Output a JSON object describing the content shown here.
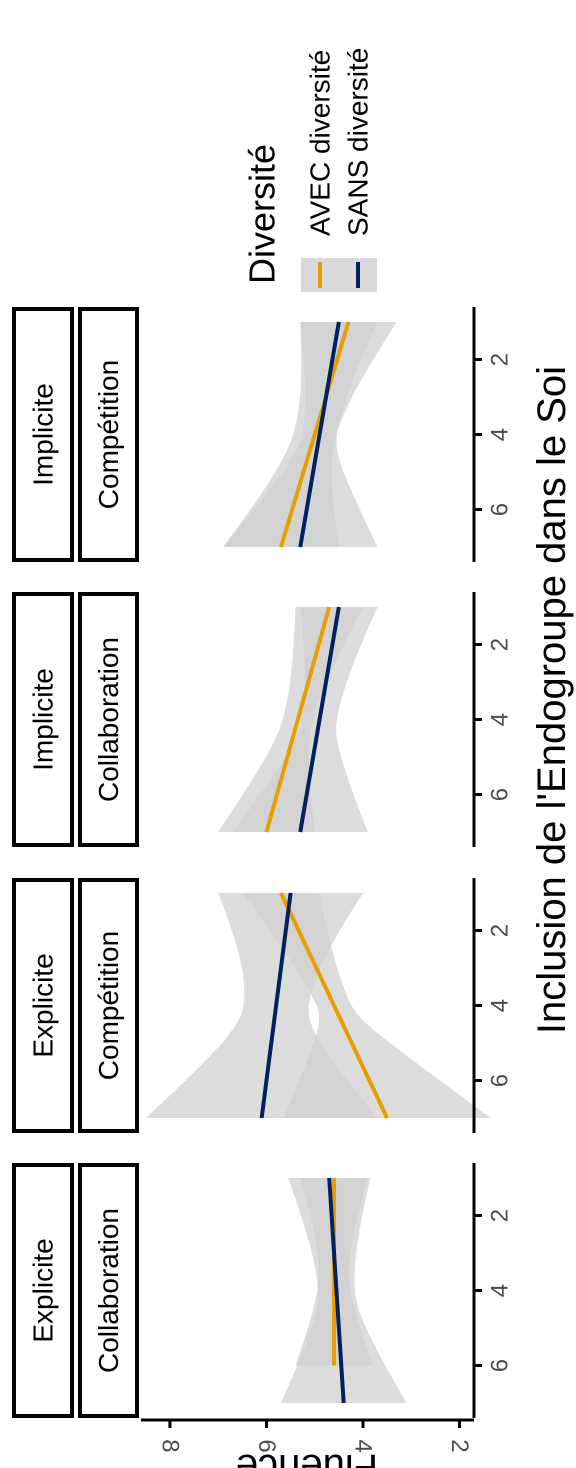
{
  "chart_data": {
    "type": "line",
    "orientation": "rotated-90-cw",
    "xlabel": "Inclusion de l'Endogroupe dans le Soi",
    "ylabel": "Fluence",
    "xticks": [
      2,
      4,
      6
    ],
    "yticks": [
      2,
      4,
      6,
      8
    ],
    "xlim": [
      0.6,
      7.4
    ],
    "ylim": [
      1.7,
      8.6
    ],
    "legend": {
      "title": "Diversité",
      "position": "right",
      "entries": [
        {
          "label": "AVEC diversité",
          "color": "#E69F00"
        },
        {
          "label": "SANS diversité",
          "color": "#002060"
        }
      ]
    },
    "band_color": "#d0d0d0",
    "panels": [
      {
        "strip1": "Explicite",
        "strip2": "Collaboration",
        "series": [
          {
            "name": "AVEC diversité",
            "x": [
              1,
              6
            ],
            "y": [
              4.6,
              4.6
            ],
            "lower": [
              3.9,
              3.9
            ],
            "upper": [
              5.3,
              5.5
            ]
          },
          {
            "name": "SANS diversité",
            "x": [
              1,
              7
            ],
            "y": [
              4.7,
              4.4
            ],
            "lower": [
              3.8,
              3.1
            ],
            "upper": [
              5.5,
              5.7
            ]
          }
        ]
      },
      {
        "strip1": "Explicite",
        "strip2": "Compétition",
        "series": [
          {
            "name": "AVEC diversité",
            "x": [
              1,
              7
            ],
            "y": [
              5.7,
              3.5
            ],
            "lower": [
              4.9,
              1.4
            ],
            "upper": [
              6.5,
              5.7
            ]
          },
          {
            "name": "SANS diversité",
            "x": [
              1,
              7
            ],
            "y": [
              5.5,
              6.1
            ],
            "lower": [
              4.0,
              3.7
            ],
            "upper": [
              7.0,
              8.5
            ]
          }
        ]
      },
      {
        "strip1": "Implicite",
        "strip2": "Collaboration",
        "series": [
          {
            "name": "AVEC diversité",
            "x": [
              1,
              7
            ],
            "y": [
              4.7,
              6.0
            ],
            "lower": [
              4.0,
              5.0
            ],
            "upper": [
              5.4,
              7.0
            ]
          },
          {
            "name": "SANS diversité",
            "x": [
              1,
              7
            ],
            "y": [
              4.5,
              5.3
            ],
            "lower": [
              3.7,
              3.9
            ],
            "upper": [
              5.3,
              6.7
            ]
          }
        ]
      },
      {
        "strip1": "Implicite",
        "strip2": "Compétition",
        "series": [
          {
            "name": "AVEC diversité",
            "x": [
              1,
              7
            ],
            "y": [
              4.3,
              5.7
            ],
            "lower": [
              3.3,
              4.5
            ],
            "upper": [
              5.3,
              6.9
            ]
          },
          {
            "name": "SANS diversité",
            "x": [
              1,
              7
            ],
            "y": [
              4.5,
              5.3
            ],
            "lower": [
              3.7,
              3.7
            ],
            "upper": [
              5.3,
              6.9
            ]
          }
        ]
      }
    ]
  }
}
